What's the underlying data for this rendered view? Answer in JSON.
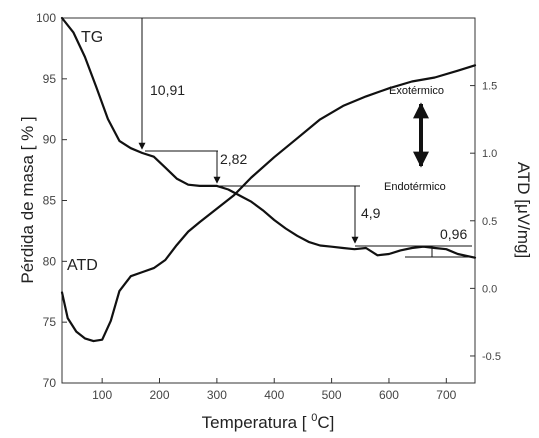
{
  "chart_data": {
    "type": "line",
    "title": "",
    "xlabel": "Temperatura [ °C]",
    "xlabel_parts": [
      "Temperatura [ ",
      "0",
      "C]"
    ],
    "ylabel_left": "Pérdida de masa [ % ]",
    "ylabel_right": "ATD [μV/mg]",
    "xlim": [
      30,
      750
    ],
    "ylim_left": [
      70,
      100
    ],
    "ylim_right": [
      -0.7,
      2.0
    ],
    "x_ticks": [
      "100",
      "200",
      "300",
      "400",
      "500",
      "600",
      "700"
    ],
    "x_tick_values": [
      100,
      200,
      300,
      400,
      500,
      600,
      700
    ],
    "y_left_ticks": [
      "70",
      "75",
      "80",
      "85",
      "90",
      "95",
      "100"
    ],
    "y_left_tick_values": [
      70,
      75,
      80,
      85,
      90,
      95,
      100
    ],
    "y_right_ticks": [
      "-0.5",
      "0.0",
      "0.5",
      "1.0",
      "1.5"
    ],
    "y_right_tick_values": [
      -0.5,
      0.0,
      0.5,
      1.0,
      1.5
    ],
    "series": [
      {
        "name": "TG",
        "axis": "left",
        "x": [
          30,
          50,
          70,
          90,
          110,
          130,
          150,
          170,
          190,
          210,
          230,
          250,
          270,
          300,
          320,
          340,
          360,
          380,
          400,
          420,
          440,
          460,
          480,
          500,
          520,
          540,
          560,
          580,
          600,
          620,
          640,
          660,
          680,
          700,
          720,
          750
        ],
        "y": [
          100,
          98.8,
          96.8,
          94.3,
          91.7,
          89.9,
          89.3,
          88.9,
          88.6,
          87.7,
          86.8,
          86.3,
          86.2,
          86.2,
          85.9,
          85.4,
          84.9,
          84.2,
          83.4,
          82.7,
          82.1,
          81.6,
          81.3,
          81.2,
          81.1,
          81.0,
          81.1,
          80.5,
          80.6,
          80.9,
          81.1,
          81.2,
          81.1,
          81.0,
          80.6,
          80.3
        ]
      },
      {
        "name": "ATD",
        "axis": "right",
        "x": [
          30,
          40,
          55,
          70,
          85,
          100,
          115,
          130,
          150,
          170,
          190,
          210,
          230,
          250,
          270,
          300,
          330,
          360,
          400,
          440,
          480,
          520,
          560,
          600,
          640,
          680,
          720,
          750
        ],
        "y": [
          -0.03,
          -0.22,
          -0.32,
          -0.37,
          -0.39,
          -0.38,
          -0.24,
          -0.02,
          0.09,
          0.12,
          0.15,
          0.21,
          0.32,
          0.42,
          0.49,
          0.59,
          0.69,
          0.82,
          0.97,
          1.11,
          1.25,
          1.35,
          1.42,
          1.48,
          1.53,
          1.56,
          1.61,
          1.65
        ]
      }
    ],
    "annotations": [
      {
        "text": "TG"
      },
      {
        "text": "ATD"
      },
      {
        "text": "10,91"
      },
      {
        "text": "2,82"
      },
      {
        "text": "4,9"
      },
      {
        "text": "0,96"
      },
      {
        "text": "Exotérmico"
      },
      {
        "text": "Endotérmico"
      }
    ],
    "grid": false,
    "legend": "none"
  }
}
